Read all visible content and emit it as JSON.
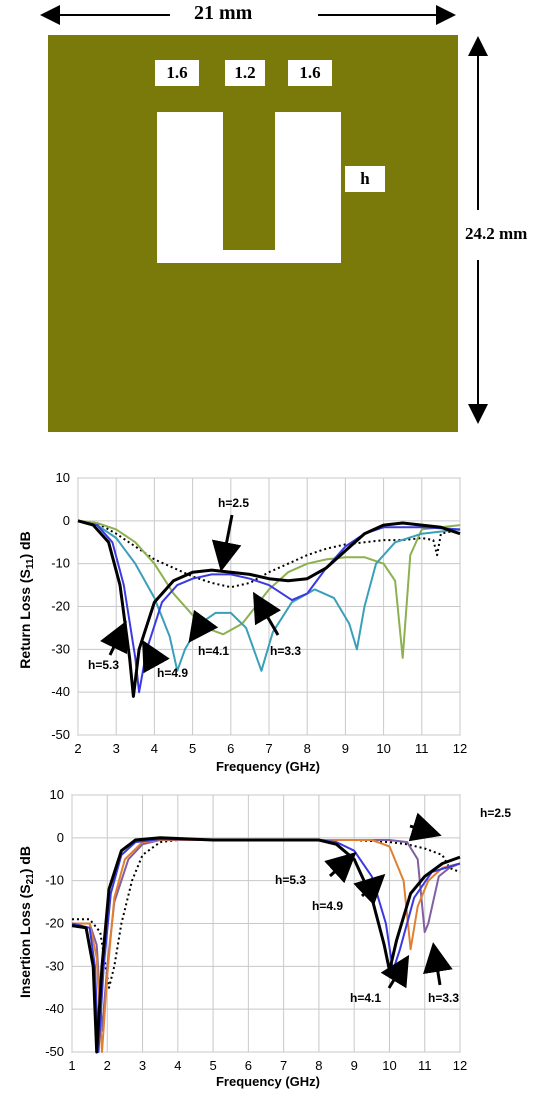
{
  "diagram": {
    "width_label": "21 mm",
    "height_label": "24.2 mm",
    "slot_labels": [
      "1.6",
      "1.2",
      "1.6"
    ],
    "h_label": "h",
    "board_color": "#7a7a0a"
  },
  "chart_data": [
    {
      "type": "line",
      "title": "",
      "xlabel": "Frequency (GHz)",
      "ylabel": "Return Loss (S11) dB",
      "xlim": [
        2,
        12
      ],
      "ylim": [
        -50,
        10
      ],
      "x_ticks": [
        2,
        3,
        4,
        5,
        6,
        7,
        8,
        9,
        10,
        11,
        12
      ],
      "y_ticks": [
        10,
        0,
        -10,
        -20,
        -30,
        -40,
        -50
      ],
      "grid": true,
      "series": [
        {
          "name": "h=2.5",
          "color": "#000000",
          "style": "dotted",
          "width": 2,
          "points": [
            [
              2,
              0
            ],
            [
              2.5,
              -0.5
            ],
            [
              3,
              -3
            ],
            [
              3.5,
              -6
            ],
            [
              4,
              -9
            ],
            [
              4.5,
              -11
            ],
            [
              5,
              -13
            ],
            [
              5.5,
              -14.5
            ],
            [
              6,
              -15.5
            ],
            [
              6.5,
              -14.5
            ],
            [
              7,
              -12
            ],
            [
              7.5,
              -10
            ],
            [
              8,
              -8
            ],
            [
              8.5,
              -6.5
            ],
            [
              9,
              -5.5
            ],
            [
              9.5,
              -5
            ],
            [
              10,
              -4.5
            ],
            [
              10.5,
              -4.5
            ],
            [
              11,
              -4
            ],
            [
              11.3,
              -4.5
            ],
            [
              11.4,
              -8
            ],
            [
              11.5,
              -3
            ],
            [
              12,
              -2
            ]
          ]
        },
        {
          "name": "h=3.3",
          "color": "#8db050",
          "style": "solid",
          "width": 2,
          "points": [
            [
              2,
              0
            ],
            [
              2.5,
              -0.5
            ],
            [
              3,
              -2
            ],
            [
              3.5,
              -5
            ],
            [
              4,
              -10
            ],
            [
              4.5,
              -17
            ],
            [
              5,
              -22
            ],
            [
              5.5,
              -25.5
            ],
            [
              5.8,
              -26.5
            ],
            [
              6.3,
              -24
            ],
            [
              7,
              -16
            ],
            [
              7.5,
              -12
            ],
            [
              8,
              -10
            ],
            [
              8.5,
              -9
            ],
            [
              9,
              -8.5
            ],
            [
              9.5,
              -8.5
            ],
            [
              10,
              -10
            ],
            [
              10.3,
              -14
            ],
            [
              10.5,
              -32
            ],
            [
              10.7,
              -8
            ],
            [
              11,
              -2
            ],
            [
              12,
              -1
            ]
          ]
        },
        {
          "name": "h=4.1",
          "color": "#3a9fb8",
          "style": "solid",
          "width": 2,
          "points": [
            [
              2,
              0
            ],
            [
              2.5,
              -1
            ],
            [
              3,
              -4
            ],
            [
              3.5,
              -10
            ],
            [
              4,
              -18
            ],
            [
              4.4,
              -27
            ],
            [
              4.6,
              -35
            ],
            [
              4.8,
              -30
            ],
            [
              5.2,
              -24
            ],
            [
              5.6,
              -21.5
            ],
            [
              6,
              -21.5
            ],
            [
              6.4,
              -25
            ],
            [
              6.8,
              -35
            ],
            [
              7.1,
              -26
            ],
            [
              7.6,
              -19
            ],
            [
              8.2,
              -16
            ],
            [
              8.7,
              -18
            ],
            [
              9.1,
              -24
            ],
            [
              9.3,
              -30
            ],
            [
              9.5,
              -20
            ],
            [
              9.8,
              -10
            ],
            [
              10.3,
              -5
            ],
            [
              11,
              -3
            ],
            [
              12,
              -2
            ]
          ]
        },
        {
          "name": "h=4.9",
          "color": "#3a3ae0",
          "style": "solid",
          "width": 2,
          "points": [
            [
              2,
              0
            ],
            [
              2.5,
              -1
            ],
            [
              2.9,
              -5
            ],
            [
              3.2,
              -15
            ],
            [
              3.5,
              -32
            ],
            [
              3.6,
              -40
            ],
            [
              3.8,
              -30
            ],
            [
              4.2,
              -19
            ],
            [
              4.6,
              -15
            ],
            [
              5,
              -13.5
            ],
            [
              5.5,
              -12.5
            ],
            [
              6,
              -12.5
            ],
            [
              6.5,
              -13.5
            ],
            [
              7,
              -15
            ],
            [
              7.6,
              -18.5
            ],
            [
              8,
              -17
            ],
            [
              8.5,
              -11
            ],
            [
              9,
              -6
            ],
            [
              9.5,
              -3
            ],
            [
              10,
              -1.5
            ],
            [
              11,
              -1.5
            ],
            [
              12,
              -2
            ]
          ]
        },
        {
          "name": "h=5.3",
          "color": "#000000",
          "style": "solid",
          "width": 3,
          "points": [
            [
              2,
              0
            ],
            [
              2.4,
              -1
            ],
            [
              2.8,
              -5
            ],
            [
              3.1,
              -15
            ],
            [
              3.35,
              -32
            ],
            [
              3.45,
              -41
            ],
            [
              3.6,
              -30
            ],
            [
              4,
              -19
            ],
            [
              4.5,
              -14
            ],
            [
              5,
              -12
            ],
            [
              5.5,
              -11.5
            ],
            [
              6,
              -12
            ],
            [
              6.5,
              -12.5
            ],
            [
              7,
              -13.5
            ],
            [
              7.5,
              -14
            ],
            [
              8,
              -13.5
            ],
            [
              8.5,
              -11
            ],
            [
              9,
              -7
            ],
            [
              9.5,
              -3
            ],
            [
              10,
              -1
            ],
            [
              10.5,
              -0.5
            ],
            [
              11,
              -1
            ],
            [
              11.5,
              -1.5
            ],
            [
              12,
              -3
            ]
          ]
        }
      ],
      "annotations": [
        "h=2.5",
        "h=3.3",
        "h=4.1",
        "h=4.9",
        "h=5.3"
      ]
    },
    {
      "type": "line",
      "title": "",
      "xlabel": "Frequency (GHz)",
      "ylabel": "Insertion Loss (S21) dB",
      "xlim": [
        1,
        12
      ],
      "ylim": [
        -50,
        10
      ],
      "x_ticks": [
        1,
        2,
        3,
        4,
        5,
        6,
        7,
        8,
        9,
        10,
        11,
        12
      ],
      "y_ticks": [
        10,
        0,
        -10,
        -20,
        -30,
        -40,
        -50
      ],
      "grid": true,
      "series": [
        {
          "name": "h=2.5",
          "color": "#000000",
          "style": "dotted",
          "width": 2,
          "points": [
            [
              1,
              -19
            ],
            [
              1.5,
              -19
            ],
            [
              1.8,
              -22
            ],
            [
              2.05,
              -35
            ],
            [
              2.2,
              -30
            ],
            [
              2.4,
              -20
            ],
            [
              2.7,
              -10
            ],
            [
              3,
              -4
            ],
            [
              3.5,
              -1
            ],
            [
              4,
              -0.5
            ],
            [
              5,
              -0.5
            ],
            [
              6,
              -0.5
            ],
            [
              7,
              -0.5
            ],
            [
              8,
              -0.5
            ],
            [
              9,
              -0.5
            ],
            [
              10,
              -1
            ],
            [
              10.5,
              -1.5
            ],
            [
              11,
              -2.5
            ],
            [
              11.5,
              -4
            ],
            [
              11.7,
              -7
            ],
            [
              12,
              -8
            ]
          ]
        },
        {
          "name": "h=3.3",
          "color": "#8060a0",
          "style": "solid",
          "width": 2,
          "points": [
            [
              1,
              -20
            ],
            [
              1.5,
              -20
            ],
            [
              1.7,
              -25
            ],
            [
              1.85,
              -45
            ],
            [
              2,
              -30
            ],
            [
              2.2,
              -15
            ],
            [
              2.6,
              -5
            ],
            [
              3,
              -1.5
            ],
            [
              3.5,
              -0.5
            ],
            [
              5,
              -0.5
            ],
            [
              7,
              -0.5
            ],
            [
              9,
              -0.5
            ],
            [
              10,
              -0.5
            ],
            [
              10.5,
              -1
            ],
            [
              10.8,
              -5
            ],
            [
              11,
              -22
            ],
            [
              11.1,
              -20
            ],
            [
              11.4,
              -9
            ],
            [
              11.7,
              -7
            ],
            [
              12,
              -6
            ]
          ]
        },
        {
          "name": "h=4.1",
          "color": "#e08030",
          "style": "solid",
          "width": 2,
          "points": [
            [
              1,
              -20
            ],
            [
              1.5,
              -20
            ],
            [
              1.7,
              -28
            ],
            [
              1.85,
              -50
            ],
            [
              2,
              -32
            ],
            [
              2.2,
              -14
            ],
            [
              2.5,
              -5
            ],
            [
              3,
              -1
            ],
            [
              3.5,
              -0.5
            ],
            [
              5,
              -0.5
            ],
            [
              7,
              -0.5
            ],
            [
              9,
              -0.5
            ],
            [
              9.5,
              -0.5
            ],
            [
              10,
              -2
            ],
            [
              10.4,
              -10
            ],
            [
              10.6,
              -26
            ],
            [
              10.8,
              -16
            ],
            [
              11.1,
              -10
            ],
            [
              11.5,
              -7
            ],
            [
              12,
              -6
            ]
          ]
        },
        {
          "name": "h=4.9",
          "color": "#3a3ae0",
          "style": "solid",
          "width": 2,
          "points": [
            [
              1,
              -20
            ],
            [
              1.5,
              -21
            ],
            [
              1.65,
              -30
            ],
            [
              1.75,
              -50
            ],
            [
              1.9,
              -30
            ],
            [
              2.1,
              -13
            ],
            [
              2.4,
              -4
            ],
            [
              2.8,
              -1
            ],
            [
              3.5,
              -0.3
            ],
            [
              5,
              -0.5
            ],
            [
              7,
              -0.5
            ],
            [
              8,
              -0.5
            ],
            [
              8.5,
              -1
            ],
            [
              9,
              -3
            ],
            [
              9.5,
              -9
            ],
            [
              9.9,
              -20
            ],
            [
              10.1,
              -31
            ],
            [
              10.3,
              -26
            ],
            [
              10.7,
              -14
            ],
            [
              11.2,
              -8
            ],
            [
              12,
              -6
            ]
          ]
        },
        {
          "name": "h=5.3",
          "color": "#000000",
          "style": "solid",
          "width": 3,
          "points": [
            [
              1,
              -20.5
            ],
            [
              1.4,
              -21
            ],
            [
              1.6,
              -30
            ],
            [
              1.7,
              -50
            ],
            [
              1.85,
              -30
            ],
            [
              2.05,
              -12
            ],
            [
              2.4,
              -3
            ],
            [
              2.8,
              -0.5
            ],
            [
              3.5,
              0
            ],
            [
              5,
              -0.5
            ],
            [
              7,
              -0.5
            ],
            [
              8,
              -0.5
            ],
            [
              8.5,
              -1.5
            ],
            [
              9,
              -5
            ],
            [
              9.5,
              -14
            ],
            [
              9.85,
              -25
            ],
            [
              10,
              -31
            ],
            [
              10.2,
              -24
            ],
            [
              10.6,
              -13
            ],
            [
              11,
              -9
            ],
            [
              11.5,
              -6
            ],
            [
              12,
              -4.5
            ]
          ]
        }
      ],
      "annotations": [
        "h=2.5",
        "h=5.3",
        "h=4.9",
        "h=4.1",
        "h=3.3"
      ]
    }
  ]
}
